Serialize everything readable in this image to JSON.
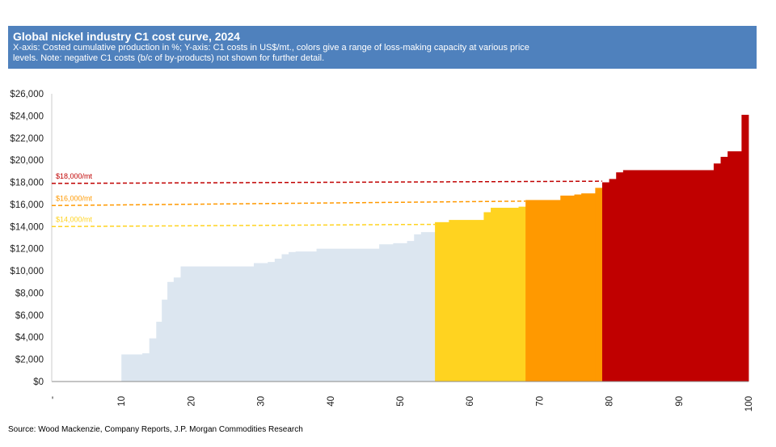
{
  "header": {
    "title": "Global nickel industry C1 cost curve, 2024",
    "subtitle": "X-axis: Costed cumulative production in %; Y-axis: C1 costs in US$/mt., colors give a range of loss-making capacity at various price levels. Note: negative C1 costs (b/c of by-products) not shown for further detail."
  },
  "source": "Source: Wood Mackenzie, Company Reports, J.P. Morgan Commodities Research",
  "colors": {
    "header_bg": "#4f81bd",
    "base": "#dce6f0",
    "below_16000": "#ffd320",
    "below_18000": "#ff9900",
    "above_18000": "#c00000",
    "line_18000": "#c00000",
    "line_16000": "#ff9900",
    "line_14000": "#ffd320"
  },
  "chart_data": {
    "type": "area",
    "title": "Global nickel industry C1 cost curve, 2024",
    "xlabel": "",
    "ylabel": "",
    "xlim": [
      0,
      100
    ],
    "ylim": [
      0,
      26000
    ],
    "x_ticks": [
      "-",
      "10",
      "20",
      "30",
      "40",
      "50",
      "60",
      "70",
      "80",
      "90",
      "100"
    ],
    "y_ticks": [
      "$0",
      "$2,000",
      "$4,000",
      "$6,000",
      "$8,000",
      "$10,000",
      "$12,000",
      "$14,000",
      "$16,000",
      "$18,000",
      "$20,000",
      "$22,000",
      "$24,000",
      "$26,000"
    ],
    "y_tick_values": [
      0,
      2000,
      4000,
      6000,
      8000,
      10000,
      12000,
      14000,
      16000,
      18000,
      20000,
      22000,
      24000,
      26000
    ],
    "grid": false,
    "reference_lines": [
      {
        "label": "$18,000/mt",
        "y_start": 17900,
        "y_end": 18100,
        "x_end": 79,
        "color_key": "line_18000"
      },
      {
        "label": "$16,000/mt",
        "y_start": 15900,
        "y_end": 16300,
        "x_end": 68,
        "color_key": "line_16000"
      },
      {
        "label": "$14,000/mt",
        "y_start": 14000,
        "y_end": 14200,
        "x_end": 55,
        "color_key": "line_14000"
      }
    ],
    "series": [
      {
        "color_key": "base",
        "steps": [
          [
            0,
            10,
            0
          ],
          [
            10,
            13,
            2450
          ],
          [
            13,
            14,
            2550
          ],
          [
            14,
            15,
            3900
          ],
          [
            15,
            15.8,
            5400
          ],
          [
            15.8,
            16.6,
            7400
          ],
          [
            16.6,
            17.5,
            9000
          ],
          [
            17.5,
            18.5,
            9400
          ],
          [
            18.5,
            29,
            10400
          ],
          [
            29,
            31,
            10700
          ],
          [
            31,
            32,
            10800
          ],
          [
            32,
            33,
            11100
          ],
          [
            33,
            34,
            11500
          ],
          [
            34,
            35,
            11700
          ],
          [
            35,
            38,
            11750
          ],
          [
            38,
            47,
            12000
          ],
          [
            47,
            49,
            12400
          ],
          [
            49,
            51,
            12500
          ],
          [
            51,
            52,
            12700
          ],
          [
            52,
            53,
            13300
          ],
          [
            53,
            55,
            13500
          ]
        ]
      },
      {
        "color_key": "below_16000",
        "steps": [
          [
            55,
            57,
            14400
          ],
          [
            57,
            62,
            14600
          ],
          [
            62,
            63,
            15300
          ],
          [
            63,
            67,
            15700
          ],
          [
            67,
            68,
            15800
          ]
        ]
      },
      {
        "color_key": "below_18000",
        "steps": [
          [
            68,
            73,
            16400
          ],
          [
            73,
            75,
            16800
          ],
          [
            75,
            76,
            16900
          ],
          [
            76,
            78,
            17000
          ],
          [
            78,
            79,
            17500
          ]
        ]
      },
      {
        "color_key": "above_18000",
        "steps": [
          [
            79,
            80,
            18000
          ],
          [
            80,
            81,
            18300
          ],
          [
            81,
            82,
            18900
          ],
          [
            82,
            95,
            19100
          ],
          [
            95,
            96,
            19700
          ],
          [
            96,
            97,
            20300
          ],
          [
            97,
            99,
            20800
          ],
          [
            99,
            100,
            24100
          ]
        ]
      }
    ]
  }
}
